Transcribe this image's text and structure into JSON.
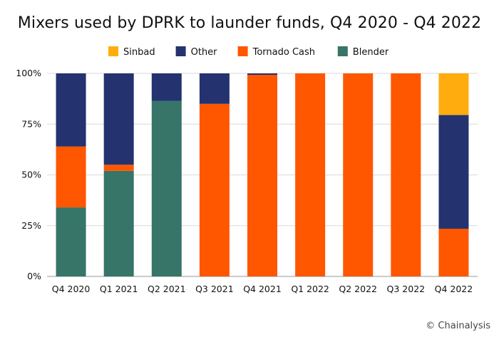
{
  "chart_data": {
    "type": "bar",
    "stacked": true,
    "percent": true,
    "title": "Mixers used by DPRK to launder funds, Q4 2020 - Q4 2022",
    "categories": [
      "Q4 2020",
      "Q1 2021",
      "Q2 2021",
      "Q3 2021",
      "Q4 2021",
      "Q1 2022",
      "Q2 2022",
      "Q3 2022",
      "Q4 2022"
    ],
    "series": [
      {
        "name": "Blender",
        "color": "#367568",
        "values": [
          34,
          52,
          86.5,
          0,
          0,
          0,
          0,
          0,
          0
        ]
      },
      {
        "name": "Tornado Cash",
        "color": "#ff5600",
        "values": [
          30,
          3,
          0,
          85,
          99.3,
          100,
          100,
          100,
          23.5
        ]
      },
      {
        "name": "Other",
        "color": "#24326f",
        "values": [
          36,
          45,
          13.5,
          15,
          0.7,
          0,
          0,
          0,
          56
        ]
      },
      {
        "name": "Sinbad",
        "color": "#ffad0e",
        "values": [
          0,
          0,
          0,
          0,
          0,
          0,
          0,
          0,
          20.5
        ]
      }
    ],
    "legend_order": [
      "Sinbad",
      "Other",
      "Tornado Cash",
      "Blender"
    ],
    "legend_placement": "top",
    "ylim": [
      0,
      100
    ],
    "yticks": [
      "0%",
      "25%",
      "50%",
      "75%",
      "100%"
    ],
    "ytick_values": [
      0,
      25,
      50,
      75,
      100
    ],
    "grid": "horizontal",
    "xlabel": "",
    "ylabel": ""
  },
  "credit": "© Chainalysis"
}
